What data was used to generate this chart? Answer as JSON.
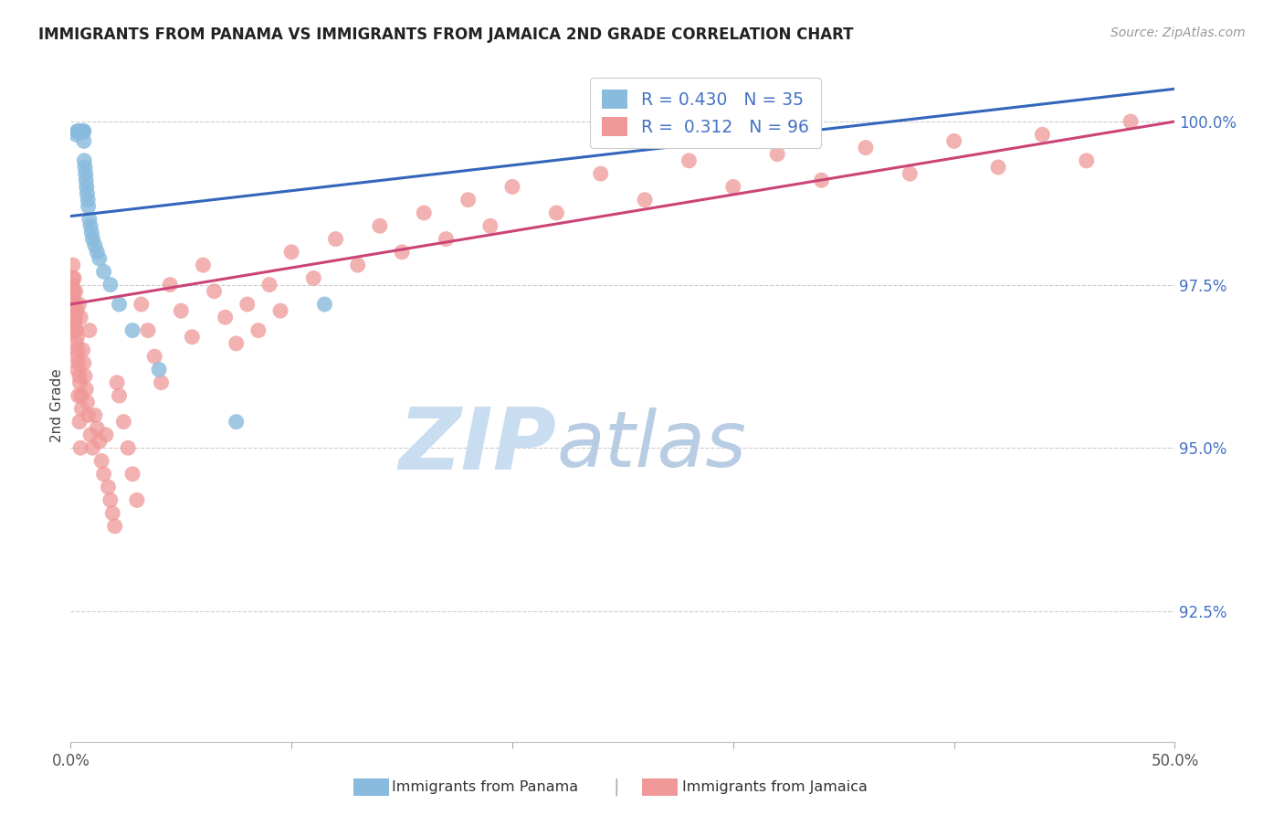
{
  "title": "IMMIGRANTS FROM PANAMA VS IMMIGRANTS FROM JAMAICA 2ND GRADE CORRELATION CHART",
  "source": "Source: ZipAtlas.com",
  "ylabel": "2nd Grade",
  "xlim": [
    0.0,
    50.0
  ],
  "ylim": [
    90.5,
    100.8
  ],
  "yticks": [
    92.5,
    95.0,
    97.5,
    100.0
  ],
  "ytick_labels": [
    "92.5%",
    "95.0%",
    "97.5%",
    "100.0%"
  ],
  "xticks": [
    0,
    10,
    20,
    30,
    40,
    50
  ],
  "xtick_labels": [
    "0.0%",
    "",
    "",
    "",
    "",
    "50.0%"
  ],
  "legend_R1": "0.430",
  "legend_N1": "35",
  "legend_R2": "0.312",
  "legend_N2": "96",
  "panama_color": "#88bbdd",
  "jamaica_color": "#f09898",
  "panama_line_color": "#3366bb",
  "jamaica_line_color": "#cc4477",
  "blue_line_x0": 0.0,
  "blue_line_y0": 98.55,
  "blue_line_x1": 50.0,
  "blue_line_y1": 100.5,
  "pink_line_x0": 0.0,
  "pink_line_y0": 97.2,
  "pink_line_x1": 50.0,
  "pink_line_y1": 100.0,
  "watermark_zip": "ZIP",
  "watermark_atlas": "atlas",
  "watermark_color_zip": "#c8ddf0",
  "watermark_color_atlas": "#b8cce4",
  "background_color": "#ffffff",
  "grid_color": "#cccccc",
  "label_color": "#4472c4",
  "legend_label1": "Immigrants from Panama",
  "legend_label2": "Immigrants from Jamaica",
  "panama_x": [
    0.25,
    0.3,
    0.35,
    0.4,
    0.42,
    0.45,
    0.48,
    0.5,
    0.52,
    0.55,
    0.58,
    0.6,
    0.6,
    0.62,
    0.65,
    0.68,
    0.7,
    0.72,
    0.75,
    0.78,
    0.8,
    0.85,
    0.9,
    0.95,
    1.0,
    1.1,
    1.2,
    1.3,
    1.5,
    1.8,
    2.2,
    2.8,
    4.0,
    7.5,
    11.5
  ],
  "panama_y": [
    99.8,
    99.85,
    99.85,
    99.85,
    99.85,
    99.85,
    99.85,
    99.85,
    99.85,
    99.85,
    99.85,
    99.85,
    99.7,
    99.4,
    99.3,
    99.2,
    99.1,
    99.0,
    98.9,
    98.8,
    98.7,
    98.5,
    98.4,
    98.3,
    98.2,
    98.1,
    98.0,
    97.9,
    97.7,
    97.5,
    97.2,
    96.8,
    96.2,
    95.4,
    97.2
  ],
  "jamaica_x": [
    0.08,
    0.1,
    0.12,
    0.15,
    0.15,
    0.18,
    0.2,
    0.22,
    0.25,
    0.28,
    0.3,
    0.32,
    0.35,
    0.38,
    0.4,
    0.42,
    0.45,
    0.48,
    0.5,
    0.55,
    0.6,
    0.65,
    0.7,
    0.75,
    0.8,
    0.85,
    0.9,
    1.0,
    1.1,
    1.2,
    1.3,
    1.4,
    1.5,
    1.6,
    1.7,
    1.8,
    1.9,
    2.0,
    2.1,
    2.2,
    2.4,
    2.6,
    2.8,
    3.0,
    3.2,
    3.5,
    3.8,
    4.1,
    4.5,
    5.0,
    5.5,
    6.0,
    6.5,
    7.0,
    7.5,
    8.0,
    8.5,
    9.0,
    9.5,
    10.0,
    11.0,
    12.0,
    13.0,
    14.0,
    15.0,
    16.0,
    17.0,
    18.0,
    19.0,
    20.0,
    22.0,
    24.0,
    26.0,
    28.0,
    30.0,
    32.0,
    34.0,
    36.0,
    38.0,
    40.0,
    42.0,
    44.0,
    46.0,
    48.0,
    0.1,
    0.12,
    0.15,
    0.18,
    0.2,
    0.22,
    0.25,
    0.28,
    0.3,
    0.35,
    0.4,
    0.45
  ],
  "jamaica_y": [
    97.5,
    97.4,
    97.3,
    97.2,
    97.6,
    97.0,
    96.9,
    97.4,
    96.8,
    97.1,
    96.7,
    96.5,
    96.3,
    97.2,
    96.1,
    96.0,
    97.0,
    95.8,
    95.6,
    96.5,
    96.3,
    96.1,
    95.9,
    95.7,
    95.5,
    96.8,
    95.2,
    95.0,
    95.5,
    95.3,
    95.1,
    94.8,
    94.6,
    95.2,
    94.4,
    94.2,
    94.0,
    93.8,
    96.0,
    95.8,
    95.4,
    95.0,
    94.6,
    94.2,
    97.2,
    96.8,
    96.4,
    96.0,
    97.5,
    97.1,
    96.7,
    97.8,
    97.4,
    97.0,
    96.6,
    97.2,
    96.8,
    97.5,
    97.1,
    98.0,
    97.6,
    98.2,
    97.8,
    98.4,
    98.0,
    98.6,
    98.2,
    98.8,
    98.4,
    99.0,
    98.6,
    99.2,
    98.8,
    99.4,
    99.0,
    99.5,
    99.1,
    99.6,
    99.2,
    99.7,
    99.3,
    99.8,
    99.4,
    100.0,
    97.8,
    97.6,
    97.4,
    97.2,
    97.0,
    96.8,
    96.6,
    96.4,
    96.2,
    95.8,
    95.4,
    95.0
  ]
}
